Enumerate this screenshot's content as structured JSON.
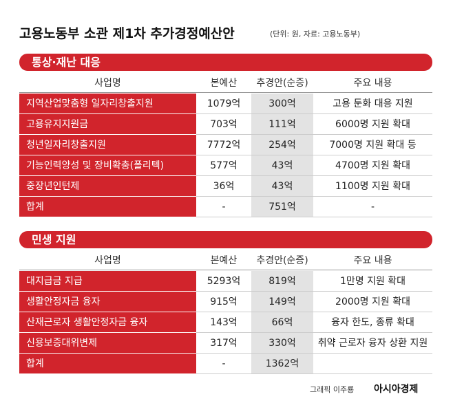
{
  "header": {
    "title": "고용노동부 소관 제1차 추가경정예산안",
    "note": "(단위: 원, 자료: 고용노동부)"
  },
  "sections": [
    {
      "title": "통상·재난 대응",
      "columns": [
        "사업명",
        "본예산",
        "추경안(순증)",
        "주요 내용"
      ],
      "rows": [
        [
          "지역산업맞춤형 일자리창출지원",
          "1079억",
          "300억",
          "고용 둔화 대응 지원"
        ],
        [
          "고용유지지원금",
          "703억",
          "111억",
          "6000명 지원 확대"
        ],
        [
          "청년일자리창출지원",
          "7772억",
          "254억",
          "7000명 지원 확대 등"
        ],
        [
          "기능인력양성 및 장비확충(폴리텍)",
          "577억",
          "43억",
          "4700명 지원 확대"
        ],
        [
          "중장년인턴제",
          "36억",
          "43억",
          "1100명 지원 확대"
        ],
        [
          "합계",
          "-",
          "751억",
          "-"
        ]
      ]
    },
    {
      "title": "민생 지원",
      "columns": [
        "사업명",
        "본예산",
        "추경안(순증)",
        "주요 내용"
      ],
      "rows": [
        [
          "대지급금 지급",
          "5293억",
          "819억",
          "1만명 지원 확대"
        ],
        [
          "생활안정자금 융자",
          "915억",
          "149억",
          "2000명 지원 확대"
        ],
        [
          "산재근로자 생활안정자금 융자",
          "143억",
          "66억",
          "융자 한도, 종류 확대"
        ],
        [
          "신용보증대위변제",
          "317억",
          "330억",
          "취약 근로자 융자 상환 지원"
        ],
        [
          "합계",
          "-",
          "1362억",
          ""
        ]
      ]
    }
  ],
  "footer": {
    "credit": "그래픽 이주룡",
    "brand": "아시아경제"
  }
}
